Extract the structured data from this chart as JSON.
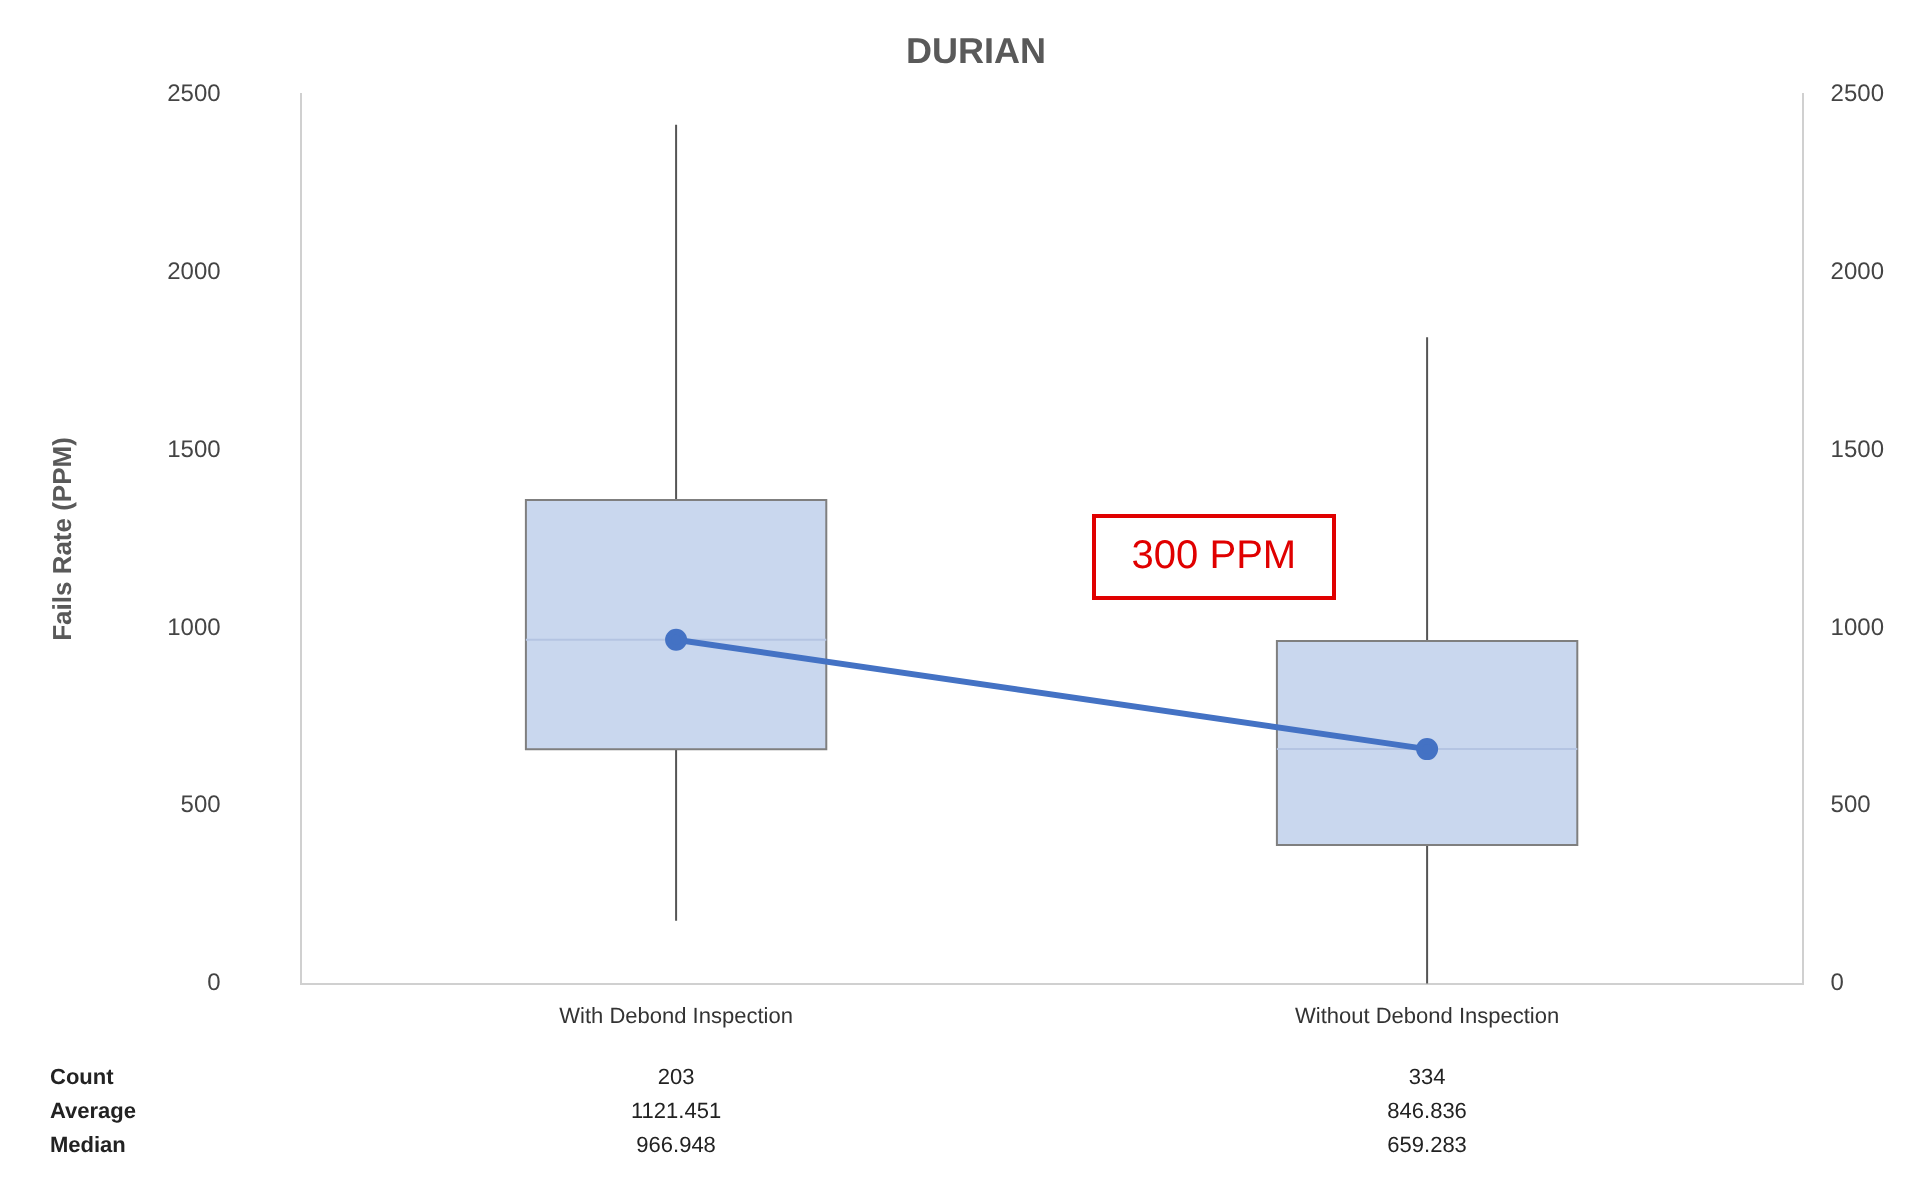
{
  "chart_data": {
    "type": "box",
    "title": "DURIAN",
    "ylabel": "Fails Rate (PPM)",
    "categories": [
      "With Debond Inspection",
      "Without Debond Inspection"
    ],
    "ylim": [
      0,
      2500
    ],
    "yticks": [
      0,
      500,
      1000,
      1500,
      2000,
      2500
    ],
    "y2lim": [
      0,
      2500
    ],
    "y2ticks": [
      0,
      500,
      1000,
      1500,
      2000,
      2500
    ],
    "grid": false,
    "legend": false,
    "marker": "circle",
    "series": [
      {
        "type": "box",
        "color": "#c9d7ee",
        "boxes": [
          {
            "low": 177,
            "q1": 659,
            "median": 966.948,
            "q3": 1360,
            "high": 2415
          },
          {
            "low": 0,
            "q1": 390,
            "median": 659.283,
            "q3": 963,
            "high": 1817
          }
        ]
      },
      {
        "type": "line",
        "color": "#4472c4",
        "values": [
          966.948,
          659.283
        ]
      }
    ],
    "annotations": [
      "300 PPM",
      "Count",
      "203",
      "334",
      "Average",
      "1121.451",
      "846.836",
      "Median",
      "966.948",
      "659.283"
    ]
  }
}
